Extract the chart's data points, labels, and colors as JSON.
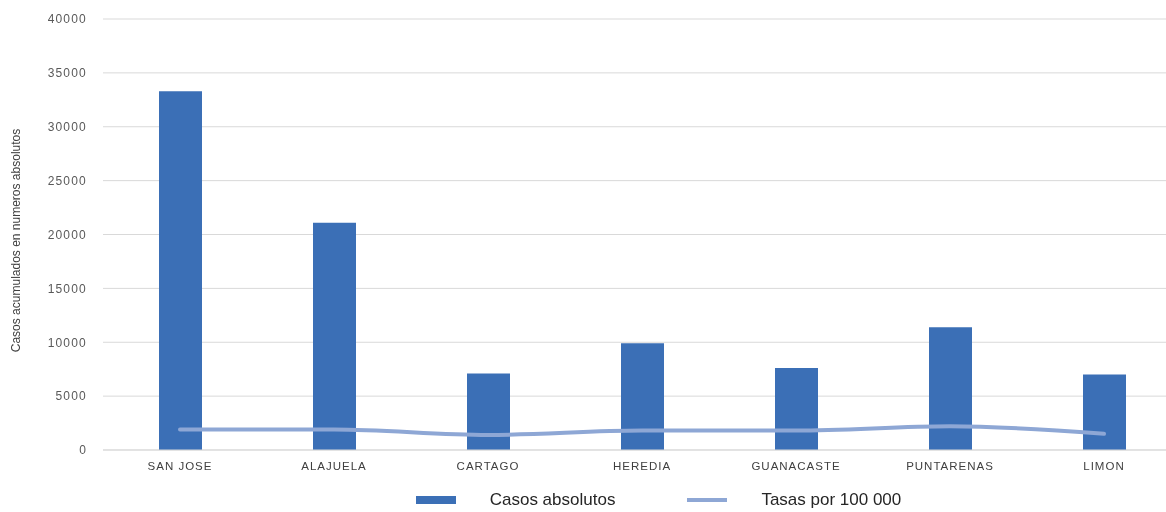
{
  "chart_data": {
    "type": "bar",
    "ylabel": "Casos acumulados en numeros absolutos",
    "categories": [
      "SAN JOSE",
      "ALAJUELA",
      "CARTAGO",
      "HEREDIA",
      "GUANACASTE",
      "PUNTARENAS",
      "LIMON"
    ],
    "series": [
      {
        "name": "Casos absolutos",
        "color": "#3b6fb6",
        "values": [
          33300,
          21100,
          7100,
          9900,
          7600,
          11400,
          7000
        ]
      },
      {
        "name": "Tasas por 100 000",
        "type": "line",
        "color": "#8ea7d5",
        "values": [
          1900,
          1900,
          1400,
          1800,
          1800,
          2200,
          1500
        ]
      }
    ],
    "ylim": [
      0,
      40000
    ],
    "yticks": [
      0,
      5000,
      10000,
      15000,
      20000,
      25000,
      30000,
      35000,
      40000
    ],
    "grid": "y",
    "legend": "bottom",
    "marker": "none"
  }
}
